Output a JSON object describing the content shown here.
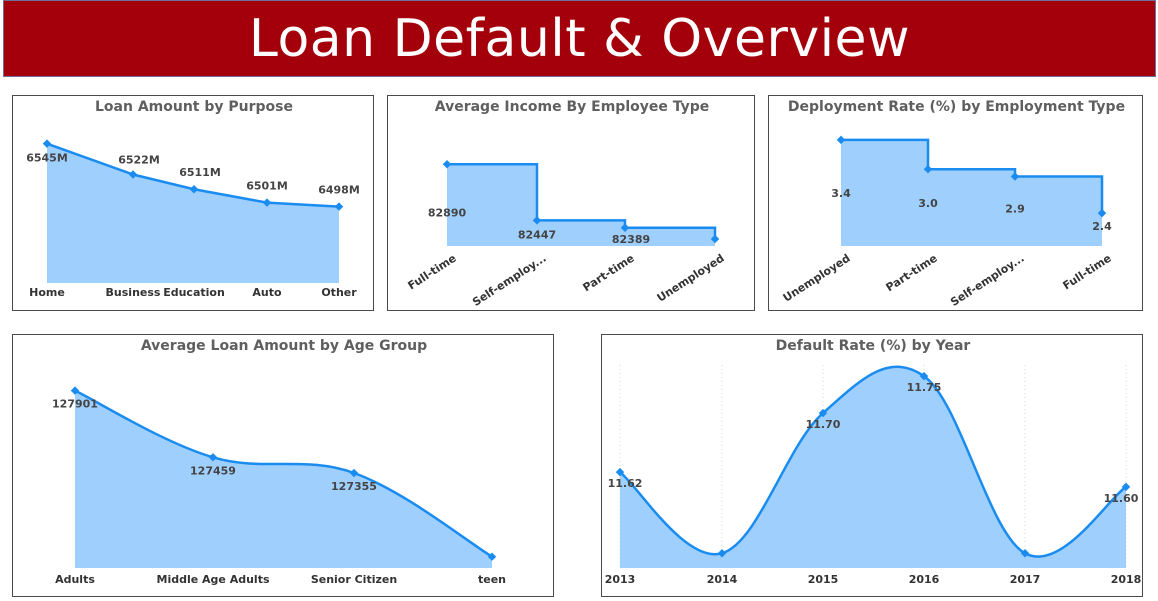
{
  "header": {
    "title": "Loan Default & Overview"
  },
  "chart_data": [
    {
      "id": "purpose",
      "type": "area",
      "title": "Loan Amount by Purpose",
      "categories": [
        "Home",
        "Business",
        "Education",
        "Auto",
        "Other"
      ],
      "values": [
        6545,
        6522,
        6511,
        6501,
        6498
      ],
      "labels": [
        "6545M",
        "6522M",
        "6511M",
        "6501M",
        "6498M"
      ],
      "ylim": [
        6441,
        6547
      ],
      "shape": "line",
      "color": "#1a8cf0",
      "fill": "#9fcffd"
    },
    {
      "id": "income",
      "type": "area",
      "title": "Average Income By Employee Type",
      "categories": [
        "Full-time",
        "Self-employ...",
        "Part-time",
        "Unemployed"
      ],
      "values": [
        82890,
        82447,
        82389,
        82300
      ],
      "labels": [
        "82890",
        "82447",
        "82389",
        ""
      ],
      "ylim": [
        82245,
        83050
      ],
      "shape": "step",
      "color": "#1a8cf0",
      "fill": "#9fcffd"
    },
    {
      "id": "deployment",
      "type": "area",
      "title": "Deployment Rate (%) by Employment Type",
      "categories": [
        "Unemployed",
        "Part-time",
        "Self-employ...",
        "Full-time"
      ],
      "values": [
        3.4,
        3.0,
        2.9,
        2.4
      ],
      "labels": [
        "3.4",
        "3.0",
        "2.9",
        "2.4"
      ],
      "ylim": [
        1.95,
        3.44
      ],
      "shape": "step",
      "color": "#1a8cf0",
      "fill": "#9fcffd"
    },
    {
      "id": "age",
      "type": "area",
      "title": "Average Loan Amount by Age Group",
      "categories": [
        "Adults",
        "Middle Age Adults",
        "Senior Citizen",
        "teen"
      ],
      "values": [
        127901,
        127459,
        127355,
        126800
      ],
      "labels": [
        "127901",
        "127459",
        "127355",
        ""
      ],
      "ylim": [
        126725,
        127965
      ],
      "shape": "smooth",
      "color": "#1a8cf0",
      "fill": "#9fcffd"
    },
    {
      "id": "default_rate",
      "type": "area",
      "title": "Default Rate (%) by Year",
      "categories": [
        "2013",
        "2014",
        "2015",
        "2016",
        "2017",
        "2018"
      ],
      "values": [
        11.62,
        11.51,
        11.7,
        11.75,
        11.51,
        11.6
      ],
      "labels": [
        "11.62",
        "",
        "11.70",
        "11.75",
        "",
        "11.60"
      ],
      "ylim": [
        11.49,
        11.757
      ],
      "shape": "smooth",
      "grid": true,
      "color": "#1a8cf0",
      "fill": "#9fcffd"
    }
  ]
}
